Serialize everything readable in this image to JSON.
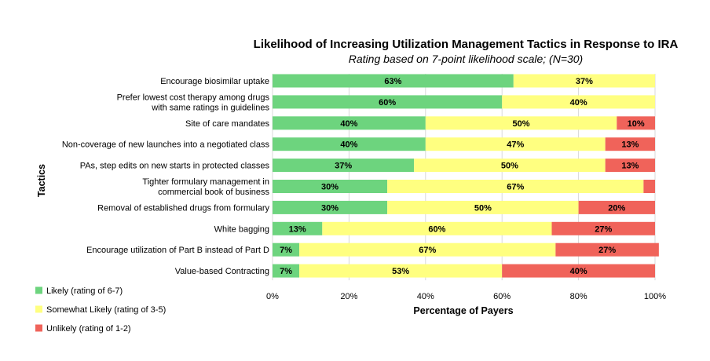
{
  "chart_data": {
    "type": "bar",
    "orientation": "horizontal-stacked",
    "title": "Likelihood of Increasing Utilization Management Tactics in Response to IRA",
    "subtitle": "Rating based on 7-point likelihood scale; (N=30)",
    "xlabel": "Percentage of Payers",
    "ylabel": "Tactics",
    "xlim": [
      0,
      100
    ],
    "x_ticks": [
      "0%",
      "20%",
      "40%",
      "60%",
      "80%",
      "100%"
    ],
    "grid": "vertical",
    "legend_position": "bottom-left",
    "categories": [
      [
        "Encourage biosimilar uptake"
      ],
      [
        "Prefer lowest cost therapy among drugs",
        "with same ratings in guidelines"
      ],
      [
        "Site of care mandates"
      ],
      [
        "Non-coverage of new launches into a negotiated class"
      ],
      [
        "PAs, step edits on new starts in protected classes"
      ],
      [
        "Tighter formulary management in",
        "commercial book of business"
      ],
      [
        "Removal of established drugs from formulary"
      ],
      [
        "White bagging"
      ],
      [
        "Encourage utilization of Part B instead of Part D"
      ],
      [
        "Value-based Contracting"
      ]
    ],
    "series": [
      {
        "name": "Likely (rating of 6-7)",
        "color": "#6dd47e",
        "values": [
          63,
          60,
          40,
          40,
          37,
          30,
          30,
          13,
          7,
          7
        ],
        "labels": [
          "63%",
          "60%",
          "40%",
          "40%",
          "37%",
          "30%",
          "30%",
          "13%",
          "7%",
          "7%"
        ]
      },
      {
        "name": "Somewhat Likely (rating of 3-5)",
        "color": "#ffff80",
        "values": [
          37,
          40,
          50,
          47,
          50,
          67,
          50,
          60,
          67,
          53
        ],
        "labels": [
          "37%",
          "40%",
          "50%",
          "47%",
          "50%",
          "67%",
          "50%",
          "60%",
          "67%",
          "53%"
        ]
      },
      {
        "name": "Unlikely (rating of 1-2)",
        "color": "#f0635a",
        "values": [
          0,
          0,
          10,
          13,
          13,
          3,
          20,
          27,
          27,
          40
        ],
        "labels": [
          "",
          "",
          "10%",
          "13%",
          "13%",
          "",
          "20%",
          "27%",
          "27%",
          "40%"
        ]
      }
    ]
  }
}
